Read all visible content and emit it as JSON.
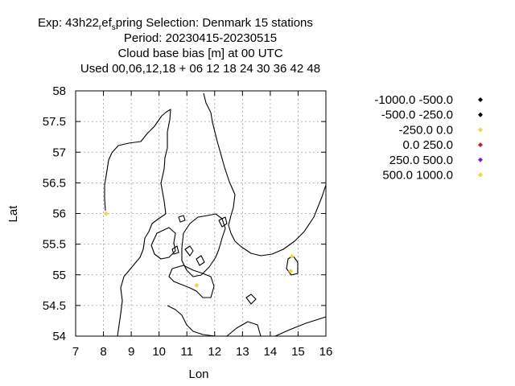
{
  "chart_data": {
    "type": "scatter",
    "title": {
      "line1_part1": "Exp: 43h22",
      "line1_sub1": "r",
      "line1_part2": "ef",
      "line1_sub2": "s",
      "line1_part3": "pring   Selection: Denmark     15 stations",
      "line2": "Period: 20230415-20230515",
      "line3": "Cloud base bias [m] at  00 UTC",
      "line4": "Used  00,06,12,18  + 06 12 18 24 30 36 42 48"
    },
    "xlabel": "Lon",
    "ylabel": "Lat",
    "xlim": [
      7,
      16
    ],
    "ylim": [
      54,
      58
    ],
    "xticks": [
      7,
      8,
      9,
      10,
      11,
      12,
      13,
      14,
      15,
      16
    ],
    "xtick_labels": [
      "7",
      "8",
      "9",
      "10",
      "11",
      "12",
      "13",
      "14",
      "15",
      "16"
    ],
    "yticks": [
      54,
      54.5,
      55,
      55.5,
      56,
      56.5,
      57,
      57.5,
      58
    ],
    "ytick_labels": [
      "54",
      "54.5",
      "55",
      "55.5",
      "56",
      "56.5",
      "57",
      "57.5",
      "58"
    ],
    "grid": true,
    "legend_position": "right",
    "series": [
      {
        "name": "-1000.0 -500.0",
        "color": "#000000",
        "points": []
      },
      {
        "name": "-500.0 -250.0",
        "color": "#000000",
        "points": []
      },
      {
        "name": "-250.0 0.0",
        "color": "#f5d442",
        "points": [
          [
            8.1,
            56.0
          ],
          [
            11.35,
            54.83
          ],
          [
            14.78,
            55.3
          ],
          [
            14.73,
            55.06
          ]
        ]
      },
      {
        "name": "0.0 250.0",
        "color": "#cc1f1f",
        "points": []
      },
      {
        "name": "250.0 500.0",
        "color": "#8a17c9",
        "points": []
      },
      {
        "name": "500.0 1000.0",
        "color": "#f5d442",
        "points": []
      }
    ]
  }
}
